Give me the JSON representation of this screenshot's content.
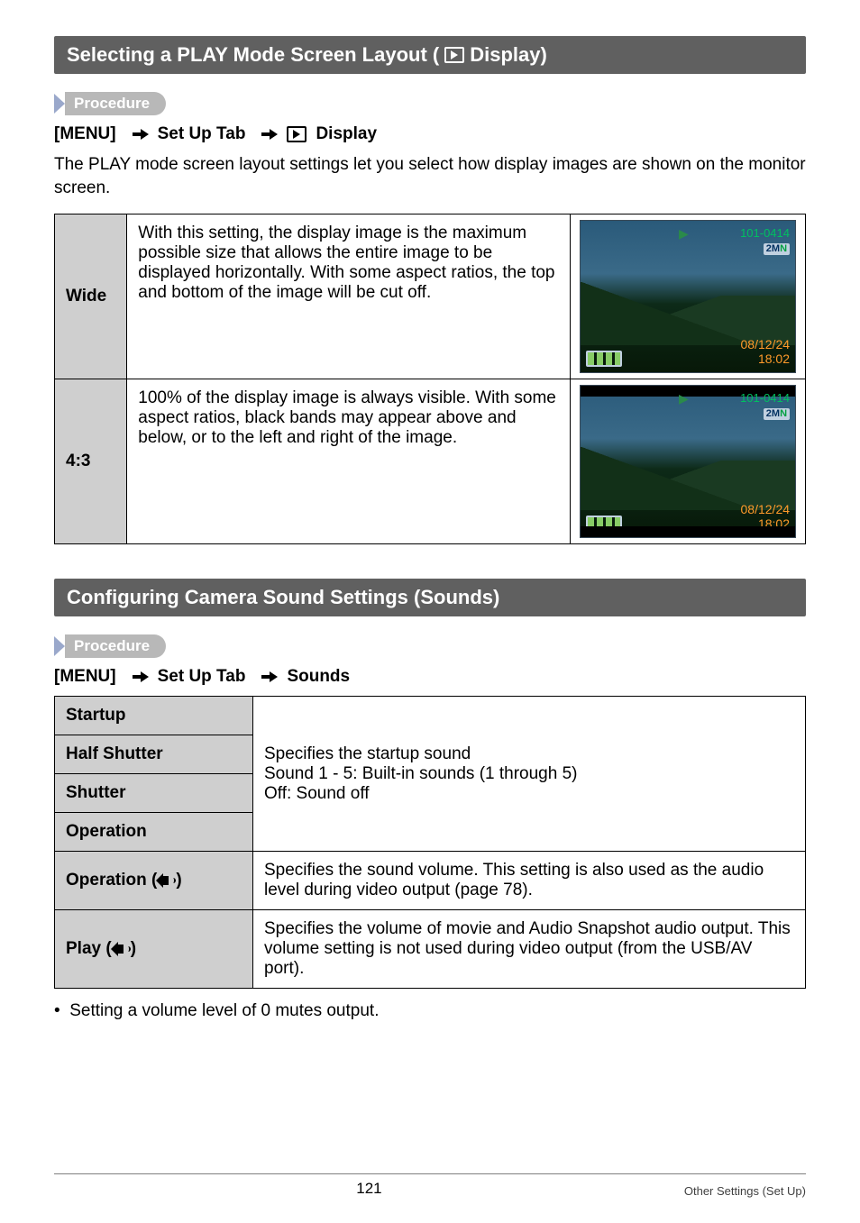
{
  "section1": {
    "title_pre": "Selecting a PLAY Mode Screen Layout (",
    "title_post": " Display)",
    "procedure_label": "Procedure",
    "proc_menu": "[MENU]",
    "proc_tab": "Set Up Tab",
    "proc_target": "Display",
    "intro": "The PLAY mode screen layout settings let you select how display images are shown on the monitor screen.",
    "rows": [
      {
        "head": "Wide",
        "desc": "With this setting, the display image is the maximum possible size that allows the entire image to be displayed horizontally. With some aspect ratios, the top and bottom of the image will be cut off.",
        "thumb": {
          "file_id": "101-0414",
          "size_badge_num": "2",
          "size_badge_suf": "M",
          "size_badge_tag": "N",
          "date": "08/12/24",
          "time": "18:02",
          "ratio43": false
        }
      },
      {
        "head": "4:3",
        "desc": "100% of the display image is always visible. With some aspect ratios, black bands may appear above and below, or to the left and right of the image.",
        "thumb": {
          "file_id": "101-0414",
          "size_badge_num": "2",
          "size_badge_suf": "M",
          "size_badge_tag": "N",
          "date": "08/12/24",
          "time": "18:02",
          "ratio43": true
        }
      }
    ]
  },
  "section2": {
    "title": "Configuring Camera Sound Settings (Sounds)",
    "procedure_label": "Procedure",
    "proc_menu": "[MENU]",
    "proc_tab": "Set Up Tab",
    "proc_target": "Sounds",
    "merged_desc_l1": "Specifies the startup sound",
    "merged_desc_l2": "Sound 1 - 5: Built-in sounds (1 through 5)",
    "merged_desc_l3": "Off: Sound off",
    "rows_merged": [
      "Startup",
      "Half Shutter",
      "Shutter",
      "Operation"
    ],
    "row_op_vol": {
      "head_pre": "Operation (",
      "head_post": ")",
      "desc": "Specifies the sound volume. This setting is also used as the audio level during video output (page 78)."
    },
    "row_play_vol": {
      "head_pre": "Play (",
      "head_post": ")",
      "desc": "Specifies the volume of movie and Audio Snapshot audio output. This volume setting is not used during video output (from the USB/AV port)."
    },
    "bullet": "Setting a volume level of 0 mutes output."
  },
  "footer": {
    "page": "121",
    "right": "Other Settings (Set Up)"
  }
}
